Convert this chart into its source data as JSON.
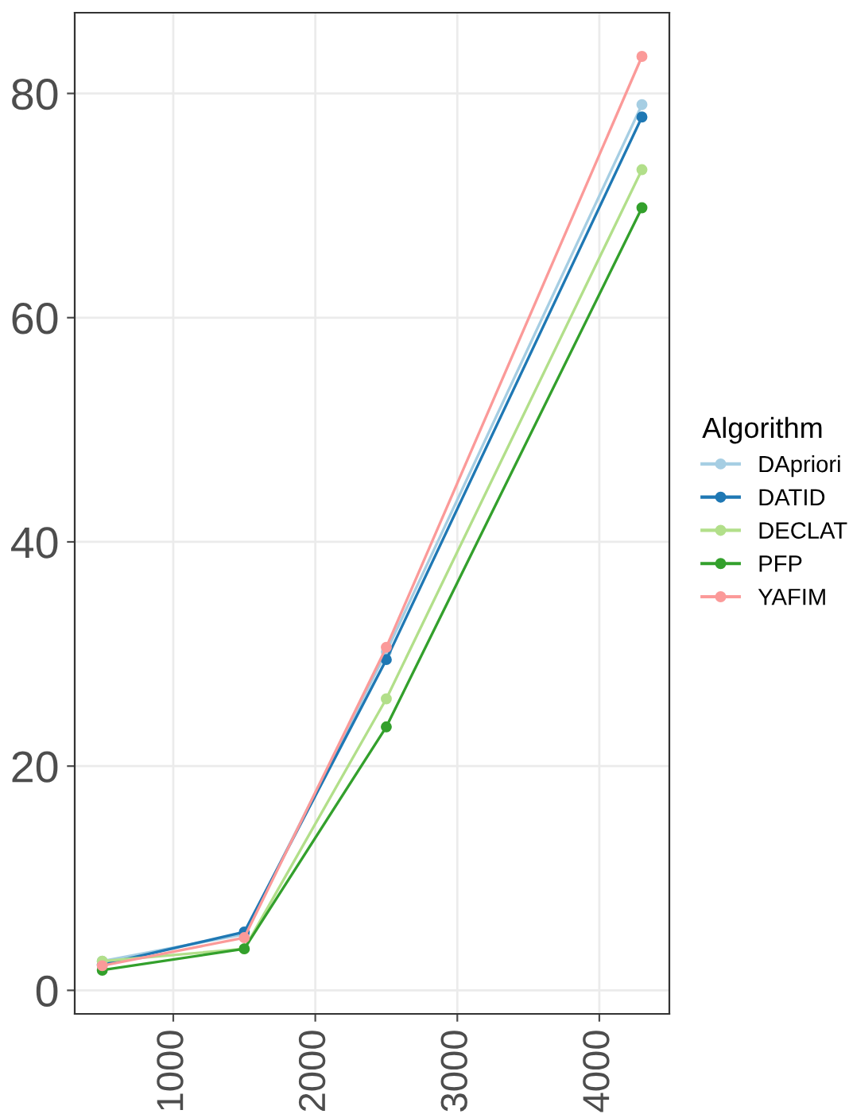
{
  "chart_data": {
    "type": "line",
    "legend_title": "Algorithm",
    "legend": "right",
    "marker": "circle",
    "line_style": "solid",
    "grid": true,
    "x": [
      500,
      1500,
      2500,
      4300
    ],
    "xlim": [
      306,
      4493
    ],
    "xticks": [
      1000,
      2000,
      3000,
      4000
    ],
    "ylim": [
      -2.1,
      87.2
    ],
    "yticks": [
      0,
      20,
      40,
      60,
      80
    ],
    "series": [
      {
        "name": "DApriori",
        "color": "#a6cee3",
        "values": [
          2.6,
          5.0,
          30.2,
          79.0
        ]
      },
      {
        "name": "DATID",
        "color": "#1f78b4",
        "values": [
          2.3,
          5.2,
          29.5,
          77.9
        ]
      },
      {
        "name": "DECLAT",
        "color": "#b2df8a",
        "values": [
          2.6,
          3.7,
          26.0,
          73.2
        ]
      },
      {
        "name": "PFP",
        "color": "#33a02c",
        "values": [
          1.8,
          3.7,
          23.5,
          69.8
        ]
      },
      {
        "name": "YAFIM",
        "color": "#fb9a99",
        "values": [
          2.2,
          4.7,
          30.6,
          83.3
        ]
      }
    ]
  }
}
